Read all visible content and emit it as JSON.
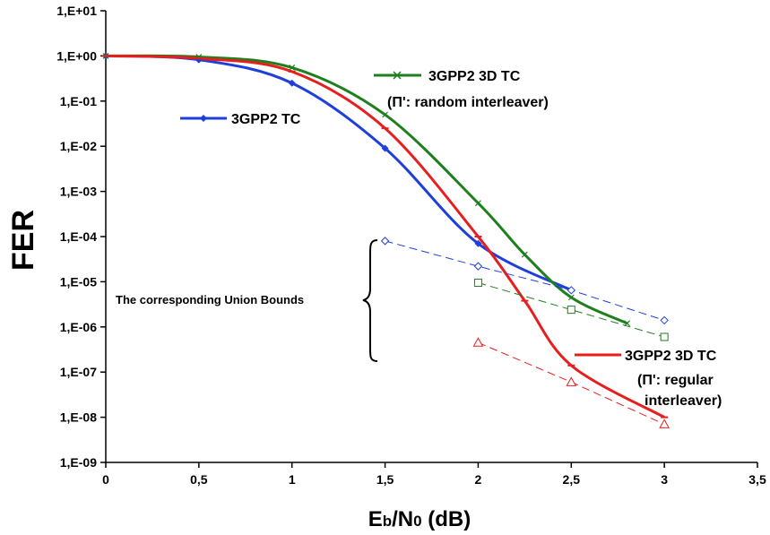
{
  "chart_data": {
    "type": "line",
    "title": "",
    "xlabel": "Eb/N0 (dB)",
    "xlabel_main": "E",
    "xlabel_sub1": "b",
    "xlabel_mid": "/N",
    "xlabel_sub2": "0",
    "xlabel_tail": " (dB)",
    "ylabel": "FER",
    "x_scale": "linear",
    "y_scale": "log",
    "xlim": [
      0,
      3.5
    ],
    "ylim": [
      1e-09,
      10
    ],
    "x_ticks": [
      0,
      0.5,
      1,
      1.5,
      2,
      2.5,
      3,
      3.5
    ],
    "x_tick_labels": [
      "0",
      "0,5",
      "1",
      "1,5",
      "2",
      "2,5",
      "3",
      "3,5"
    ],
    "y_ticks": [
      10,
      1,
      0.1,
      0.01,
      0.001,
      0.0001,
      1e-05,
      1e-06,
      1e-07,
      1e-08,
      1e-09
    ],
    "y_tick_labels": [
      "1,E+01",
      "1,E+00",
      "1,E-01",
      "1,E-02",
      "1,E-03",
      "1,E-04",
      "1,E-05",
      "1,E-06",
      "1,E-07",
      "1,E-08",
      "1,E-09"
    ],
    "grid": false,
    "series": [
      {
        "name": "3GPP2 TC",
        "color": "#1f3fdc",
        "marker": "diamond-filled",
        "style": "solid",
        "x": [
          0,
          0.5,
          1,
          1.5,
          2,
          2.5
        ],
        "y": [
          1.0,
          0.82,
          0.25,
          0.009,
          7e-05,
          6.5e-06
        ]
      },
      {
        "name": "3GPP2 3D TC",
        "name_line2": "(Π': random interleaver)",
        "color": "#1e7f1e",
        "marker": "x",
        "style": "solid",
        "x": [
          0,
          0.5,
          1,
          1.5,
          2,
          2.25,
          2.5,
          2.8
        ],
        "y": [
          1.0,
          0.95,
          0.55,
          0.05,
          0.00055,
          4e-05,
          4.5e-06,
          1.2e-06
        ]
      },
      {
        "name": "3GPP2  3D TC",
        "name_line2": "(Π': regular",
        "name_line3": "interleaver)",
        "color": "#e81e1e",
        "marker": "dash",
        "style": "solid",
        "x": [
          0,
          0.5,
          1,
          1.5,
          2,
          2.25,
          2.5,
          3
        ],
        "y": [
          1.0,
          0.88,
          0.45,
          0.025,
          0.0001,
          3.8e-06,
          1.4e-07,
          1e-08
        ]
      },
      {
        "name": "",
        "color": "#1f3fdc",
        "marker": "diamond-open",
        "style": "dashed",
        "x": [
          1.5,
          2,
          2.5,
          3
        ],
        "y": [
          8e-05,
          2.2e-05,
          6.5e-06,
          1.4e-06
        ]
      },
      {
        "name": "",
        "color": "#1e7f1e",
        "marker": "square-open",
        "style": "dashed",
        "x": [
          2,
          2.5,
          3
        ],
        "y": [
          9.5e-06,
          2.4e-06,
          6e-07
        ]
      },
      {
        "name": "",
        "color": "#e81e1e",
        "marker": "triangle-open",
        "style": "dashed",
        "x": [
          2,
          2.5,
          3
        ],
        "y": [
          4.5e-07,
          6e-08,
          7e-09
        ]
      }
    ],
    "annotations": [
      {
        "text": "The corresponding Union Bounds"
      }
    ]
  }
}
